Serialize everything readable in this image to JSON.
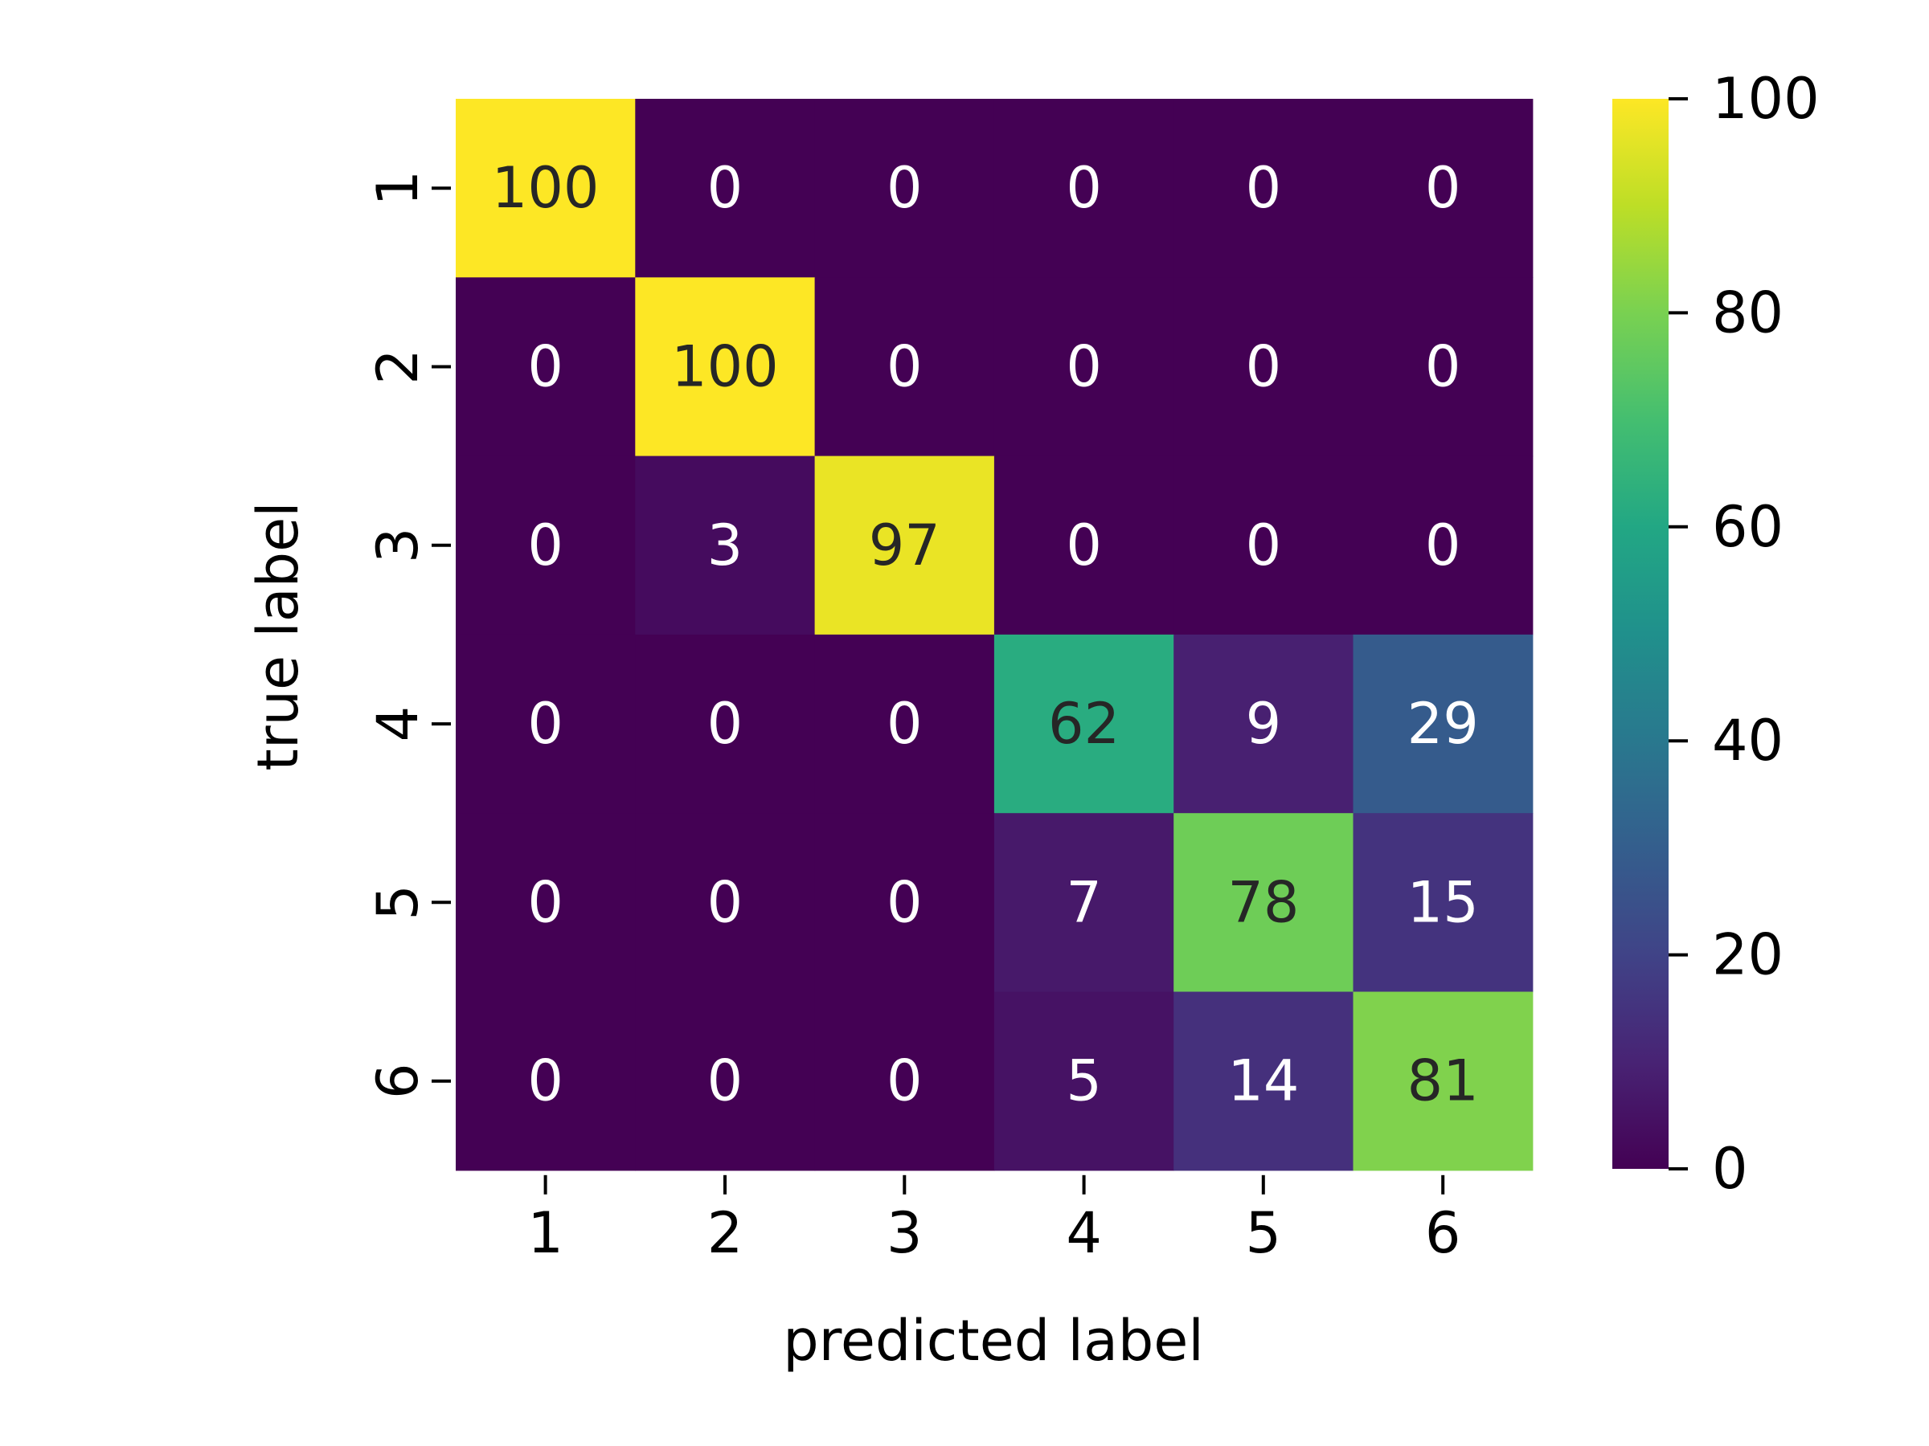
{
  "chart_data": {
    "type": "heatmap",
    "title": "",
    "xlabel": "predicted label",
    "ylabel": "true label",
    "x_categories": [
      "1",
      "2",
      "3",
      "4",
      "5",
      "6"
    ],
    "y_categories": [
      "1",
      "2",
      "3",
      "4",
      "5",
      "6"
    ],
    "values": [
      [
        100,
        0,
        0,
        0,
        0,
        0
      ],
      [
        0,
        100,
        0,
        0,
        0,
        0
      ],
      [
        0,
        3,
        97,
        0,
        0,
        0
      ],
      [
        0,
        0,
        0,
        62,
        9,
        29
      ],
      [
        0,
        0,
        0,
        7,
        78,
        15
      ],
      [
        0,
        0,
        0,
        5,
        14,
        81
      ]
    ],
    "colormap": "viridis",
    "colorbar": {
      "range": [
        0,
        100
      ],
      "ticks": [
        "0",
        "20",
        "40",
        "60",
        "80",
        "100"
      ]
    },
    "annotation_colors": {
      "light": "#ffffff",
      "dark": "#262626"
    }
  }
}
